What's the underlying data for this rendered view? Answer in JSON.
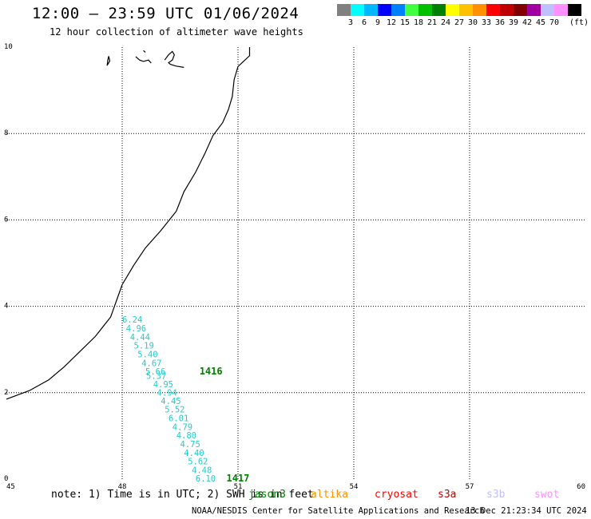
{
  "header": {
    "title": "12:00 – 23:59 UTC 01/06/2024",
    "subtitle": "12 hour collection of altimeter wave heights"
  },
  "legend": {
    "unit": "(ft)",
    "bins": [
      {
        "color": "#808080",
        "label": ""
      },
      {
        "color": "#00ffff",
        "label": "3"
      },
      {
        "color": "#00b8ff",
        "label": "6"
      },
      {
        "color": "#0000ff",
        "label": "9"
      },
      {
        "color": "#0080ff",
        "label": "12"
      },
      {
        "color": "#40ff40",
        "label": "15"
      },
      {
        "color": "#00c000",
        "label": "18"
      },
      {
        "color": "#008000",
        "label": "21"
      },
      {
        "color": "#ffff00",
        "label": "24"
      },
      {
        "color": "#ffc000",
        "label": "27"
      },
      {
        "color": "#ff9000",
        "label": "30"
      },
      {
        "color": "#ff0000",
        "label": "33"
      },
      {
        "color": "#c00000",
        "label": "36"
      },
      {
        "color": "#800000",
        "label": "39"
      },
      {
        "color": "#a000a0",
        "label": "42"
      },
      {
        "color": "#c0c0ff",
        "label": "45"
      },
      {
        "color": "#ff90ff",
        "label": "70"
      },
      {
        "color": "#000000",
        "label": ""
      }
    ]
  },
  "map": {
    "x_ticks": [
      "45",
      "48",
      "51",
      "54",
      "57",
      "60"
    ],
    "y_ticks": [
      "10",
      "8",
      "6",
      "4",
      "2",
      "0"
    ],
    "lon_range": [
      45,
      60
    ],
    "lat_range": [
      0,
      10
    ],
    "grid": true,
    "swh_values": [
      {
        "text": "6.24",
        "lon": 48.0,
        "lat": 3.62
      },
      {
        "text": "4.96",
        "lon": 48.1,
        "lat": 3.42
      },
      {
        "text": "4.44",
        "lon": 48.2,
        "lat": 3.22
      },
      {
        "text": "5.19",
        "lon": 48.3,
        "lat": 3.02
      },
      {
        "text": "5.40",
        "lon": 48.4,
        "lat": 2.82
      },
      {
        "text": "4.67",
        "lon": 48.5,
        "lat": 2.62
      },
      {
        "text": "5.66",
        "lon": 48.6,
        "lat": 2.42
      },
      {
        "text": "5.37",
        "lon": 48.62,
        "lat": 2.32
      },
      {
        "text": "4.95",
        "lon": 48.8,
        "lat": 2.13
      },
      {
        "text": "4.94",
        "lon": 48.9,
        "lat": 1.93
      },
      {
        "text": "4.45",
        "lon": 49.0,
        "lat": 1.74
      },
      {
        "text": "5.52",
        "lon": 49.1,
        "lat": 1.54
      },
      {
        "text": "6.01",
        "lon": 49.2,
        "lat": 1.34
      },
      {
        "text": "4.79",
        "lon": 49.3,
        "lat": 1.14
      },
      {
        "text": "4.80",
        "lon": 49.4,
        "lat": 0.94
      },
      {
        "text": "4.75",
        "lon": 49.5,
        "lat": 0.74
      },
      {
        "text": "4.40",
        "lon": 49.6,
        "lat": 0.54
      },
      {
        "text": "5.62",
        "lon": 49.7,
        "lat": 0.34
      },
      {
        "text": "4.48",
        "lon": 49.8,
        "lat": 0.14
      },
      {
        "text": "6.10",
        "lon": 49.9,
        "lat": -0.06
      }
    ],
    "pass_labels": [
      {
        "text": "1416",
        "lon": 50.0,
        "lat": 2.42
      },
      {
        "text": "1417",
        "lon": 50.7,
        "lat": -0.06
      }
    ],
    "coastline_lonlat": [
      [
        45.0,
        1.85
      ],
      [
        45.6,
        2.05
      ],
      [
        46.1,
        2.3
      ],
      [
        46.5,
        2.6
      ],
      [
        46.9,
        2.95
      ],
      [
        47.3,
        3.3
      ],
      [
        47.7,
        3.75
      ],
      [
        48.0,
        4.5
      ],
      [
        48.3,
        4.95
      ],
      [
        48.6,
        5.35
      ],
      [
        49.0,
        5.75
      ],
      [
        49.4,
        6.2
      ],
      [
        49.6,
        6.65
      ],
      [
        49.9,
        7.1
      ],
      [
        50.15,
        7.55
      ],
      [
        50.35,
        7.95
      ],
      [
        50.6,
        8.25
      ],
      [
        50.75,
        8.55
      ],
      [
        50.85,
        8.85
      ],
      [
        50.9,
        9.25
      ],
      [
        51.0,
        9.55
      ],
      [
        51.3,
        9.8
      ],
      [
        51.3,
        10.0
      ]
    ],
    "islands_lonlat": [
      [
        [
          47.61,
          9.57
        ],
        [
          47.63,
          9.71
        ],
        [
          47.65,
          9.79
        ],
        [
          47.68,
          9.68
        ],
        [
          47.62,
          9.59
        ]
      ],
      [
        [
          48.35,
          9.78
        ],
        [
          48.45,
          9.7
        ],
        [
          48.55,
          9.67
        ],
        [
          48.68,
          9.7
        ],
        [
          48.75,
          9.63
        ]
      ],
      [
        [
          48.55,
          9.92
        ],
        [
          48.6,
          9.88
        ]
      ],
      [
        [
          49.1,
          9.7
        ],
        [
          49.2,
          9.82
        ],
        [
          49.3,
          9.9
        ],
        [
          49.35,
          9.82
        ],
        [
          49.3,
          9.7
        ],
        [
          49.2,
          9.64
        ],
        [
          49.25,
          9.6
        ],
        [
          49.4,
          9.56
        ],
        [
          49.6,
          9.53
        ]
      ]
    ]
  },
  "footer": {
    "note": "note: 1) Time is in UTC; 2) SWH is in feet",
    "satellites": [
      {
        "name": "jason3",
        "color": "#008000"
      },
      {
        "name": "altika",
        "color": "#ff9000"
      },
      {
        "name": "cryosat",
        "color": "#ff0000"
      },
      {
        "name": "s3a",
        "color": "#c00000"
      },
      {
        "name": "s3b",
        "color": "#c0c0ff"
      },
      {
        "name": "swot",
        "color": "#ff90ff"
      }
    ],
    "credit": "NOAA/NESDIS Center for Satellite Applications and Research",
    "created": "13 Dec 21:23:34 UTC 2024"
  }
}
